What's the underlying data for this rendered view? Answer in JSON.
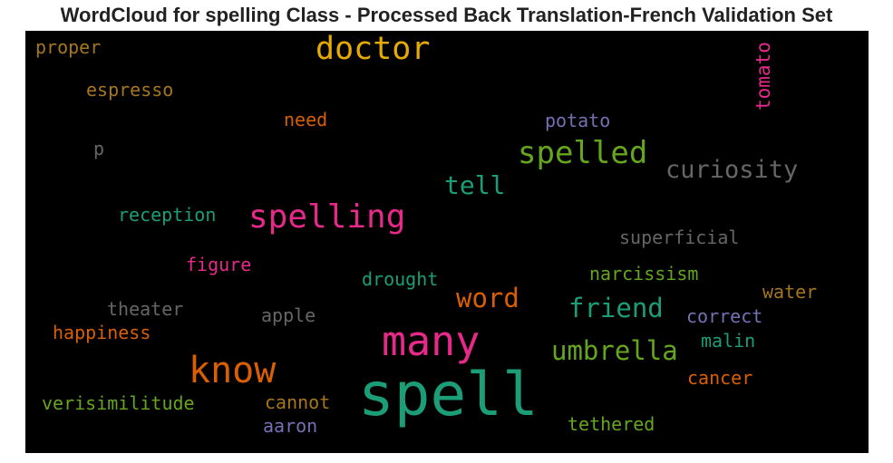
{
  "title": "WordCloud for spelling Class - Processed Back Translation-French Validation Set",
  "words": [
    {
      "text": "proper",
      "color": "#a6761d"
    },
    {
      "text": "doctor",
      "color": "#e6ab02"
    },
    {
      "text": "tomato",
      "color": "#e7298a"
    },
    {
      "text": "espresso",
      "color": "#a6761d"
    },
    {
      "text": "need",
      "color": "#d95f02"
    },
    {
      "text": "potato",
      "color": "#7570b3"
    },
    {
      "text": "p",
      "color": "#666666"
    },
    {
      "text": "spelled",
      "color": "#66a61e"
    },
    {
      "text": "curiosity",
      "color": "#666666"
    },
    {
      "text": "tell",
      "color": "#1b9e77"
    },
    {
      "text": "reception",
      "color": "#1b9e77"
    },
    {
      "text": "spelling",
      "color": "#e7298a"
    },
    {
      "text": "superficial",
      "color": "#666666"
    },
    {
      "text": "figure",
      "color": "#e7298a"
    },
    {
      "text": "narcissism",
      "color": "#66a61e"
    },
    {
      "text": "drought",
      "color": "#1b9e77"
    },
    {
      "text": "water",
      "color": "#a6761d"
    },
    {
      "text": "word",
      "color": "#d95f02"
    },
    {
      "text": "theater",
      "color": "#666666"
    },
    {
      "text": "friend",
      "color": "#1b9e77"
    },
    {
      "text": "apple",
      "color": "#666666"
    },
    {
      "text": "correct",
      "color": "#7570b3"
    },
    {
      "text": "happiness",
      "color": "#d95f02"
    },
    {
      "text": "many",
      "color": "#e7298a"
    },
    {
      "text": "malin",
      "color": "#1b9e77"
    },
    {
      "text": "umbrella",
      "color": "#66a61e"
    },
    {
      "text": "know",
      "color": "#d95f02"
    },
    {
      "text": "cancer",
      "color": "#d95f02"
    },
    {
      "text": "verisimilitude",
      "color": "#66a61e"
    },
    {
      "text": "cannot",
      "color": "#a6761d"
    },
    {
      "text": "spell",
      "color": "#1b9e77"
    },
    {
      "text": "aaron",
      "color": "#7570b3"
    },
    {
      "text": "tethered",
      "color": "#66a61e"
    }
  ]
}
